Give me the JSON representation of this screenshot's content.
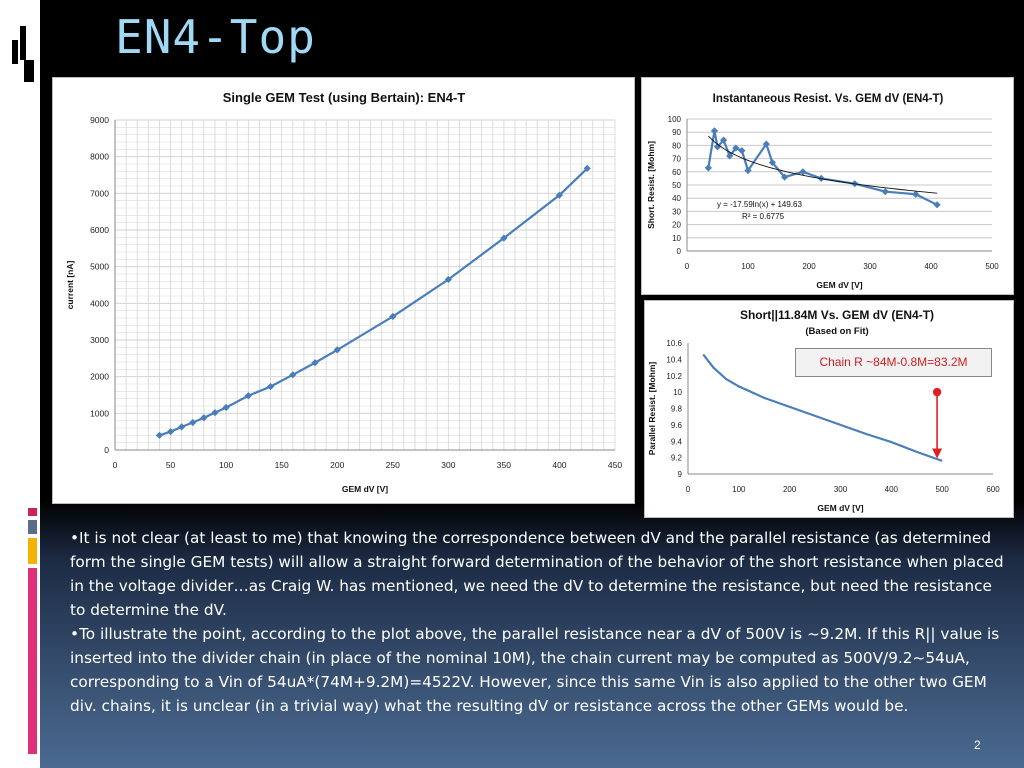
{
  "slide": {
    "title": "EN4-Top",
    "page_number": "2"
  },
  "body": {
    "bullets": [
      "•It is not clear (at least to me) that knowing the correspondence between dV and the parallel resistance (as determined form the single GEM tests) will allow a straight forward determination of the behavior of the short resistance when placed in the voltage divider…as Craig W. has mentioned, we need the dV to determine the resistance, but need the resistance to determine the dV.",
      "•To illustrate the point, according to the plot above, the parallel resistance near a dV of 500V is ~9.2M.  If this R|| value is inserted into the divider chain (in place of the nominal 10M), the chain current may be computed as 500V/9.2~54uA, corresponding to a Vin of 54uA*(74M+9.2M)=4522V.  However, since this same Vin is also applied to the other two GEM div. chains, it is unclear (in a trivial way) what the resulting dV or resistance across the other GEMs would be."
    ]
  },
  "colors": {
    "series": "#4a7ebb",
    "title": "#9fd9f5",
    "annotation": "#e02020"
  },
  "chart_data": [
    {
      "type": "line",
      "title": "Single GEM Test (using Bertain): EN4-T",
      "xlabel": "GEM dV [V]",
      "ylabel": "current [nA]",
      "xlim": [
        0,
        450
      ],
      "ylim": [
        0,
        9000
      ],
      "xticks": [
        0,
        50,
        100,
        150,
        200,
        250,
        300,
        350,
        400,
        450
      ],
      "yticks": [
        0,
        1000,
        2000,
        3000,
        4000,
        5000,
        6000,
        7000,
        8000,
        9000
      ],
      "grid": true,
      "series": [
        {
          "x": [
            40,
            50,
            60,
            70,
            80,
            90,
            100,
            120,
            140,
            160,
            180,
            200,
            250,
            300,
            350,
            400,
            425
          ],
          "y": [
            400,
            500,
            630,
            750,
            880,
            1020,
            1160,
            1480,
            1730,
            2050,
            2380,
            2730,
            3640,
            4650,
            5780,
            6950,
            7680
          ]
        }
      ]
    },
    {
      "type": "line",
      "title": "Instantaneous  Resist. Vs. GEM dV (EN4-T)",
      "xlabel": "GEM dV [V]",
      "ylabel": "Short. Resist. [Mohm]",
      "xlim": [
        0,
        500
      ],
      "ylim": [
        0,
        100
      ],
      "xticks": [
        0,
        100,
        200,
        300,
        400,
        500
      ],
      "yticks": [
        0,
        10,
        20,
        30,
        40,
        50,
        60,
        70,
        80,
        90,
        100
      ],
      "grid": true,
      "annotations": [
        "y = -17.59ln(x) + 149.63",
        "R² = 0.6775"
      ],
      "series": [
        {
          "x": [
            35,
            45,
            50,
            60,
            70,
            80,
            90,
            100,
            130,
            140,
            160,
            190,
            220,
            275,
            325,
            375,
            410
          ],
          "y": [
            63,
            91,
            79,
            84,
            72,
            78,
            76,
            61,
            81,
            67,
            56,
            60,
            55,
            51,
            45,
            43,
            35
          ]
        }
      ],
      "trendline": {
        "formula": "y = -17.59ln(x) + 149.63",
        "x": [
          35,
          410
        ]
      }
    },
    {
      "type": "line",
      "title": "Short||11.84M Vs. GEM dV (EN4-T)",
      "subtitle": "(Based on Fit)",
      "xlabel": "GEM dV [V]",
      "ylabel": "Parallel Resist. [Mohm]",
      "xlim": [
        0,
        600
      ],
      "ylim": [
        9,
        10.6
      ],
      "xticks": [
        0,
        100,
        200,
        300,
        400,
        500,
        600
      ],
      "yticks": [
        9,
        9.2,
        9.4,
        9.6,
        9.8,
        10,
        10.2,
        10.4,
        10.6
      ],
      "grid": false,
      "annotation_box": "Chain R ~84M-0.8M=83.2M",
      "series": [
        {
          "x": [
            30,
            50,
            75,
            100,
            150,
            200,
            250,
            300,
            350,
            400,
            450,
            500
          ],
          "y": [
            10.46,
            10.3,
            10.16,
            10.07,
            9.93,
            9.82,
            9.71,
            9.6,
            9.49,
            9.39,
            9.27,
            9.16
          ]
        }
      ],
      "marker_point": {
        "x": 490,
        "y": 10.0
      },
      "arrow_to": {
        "x": 490,
        "y": 9.19
      }
    }
  ]
}
